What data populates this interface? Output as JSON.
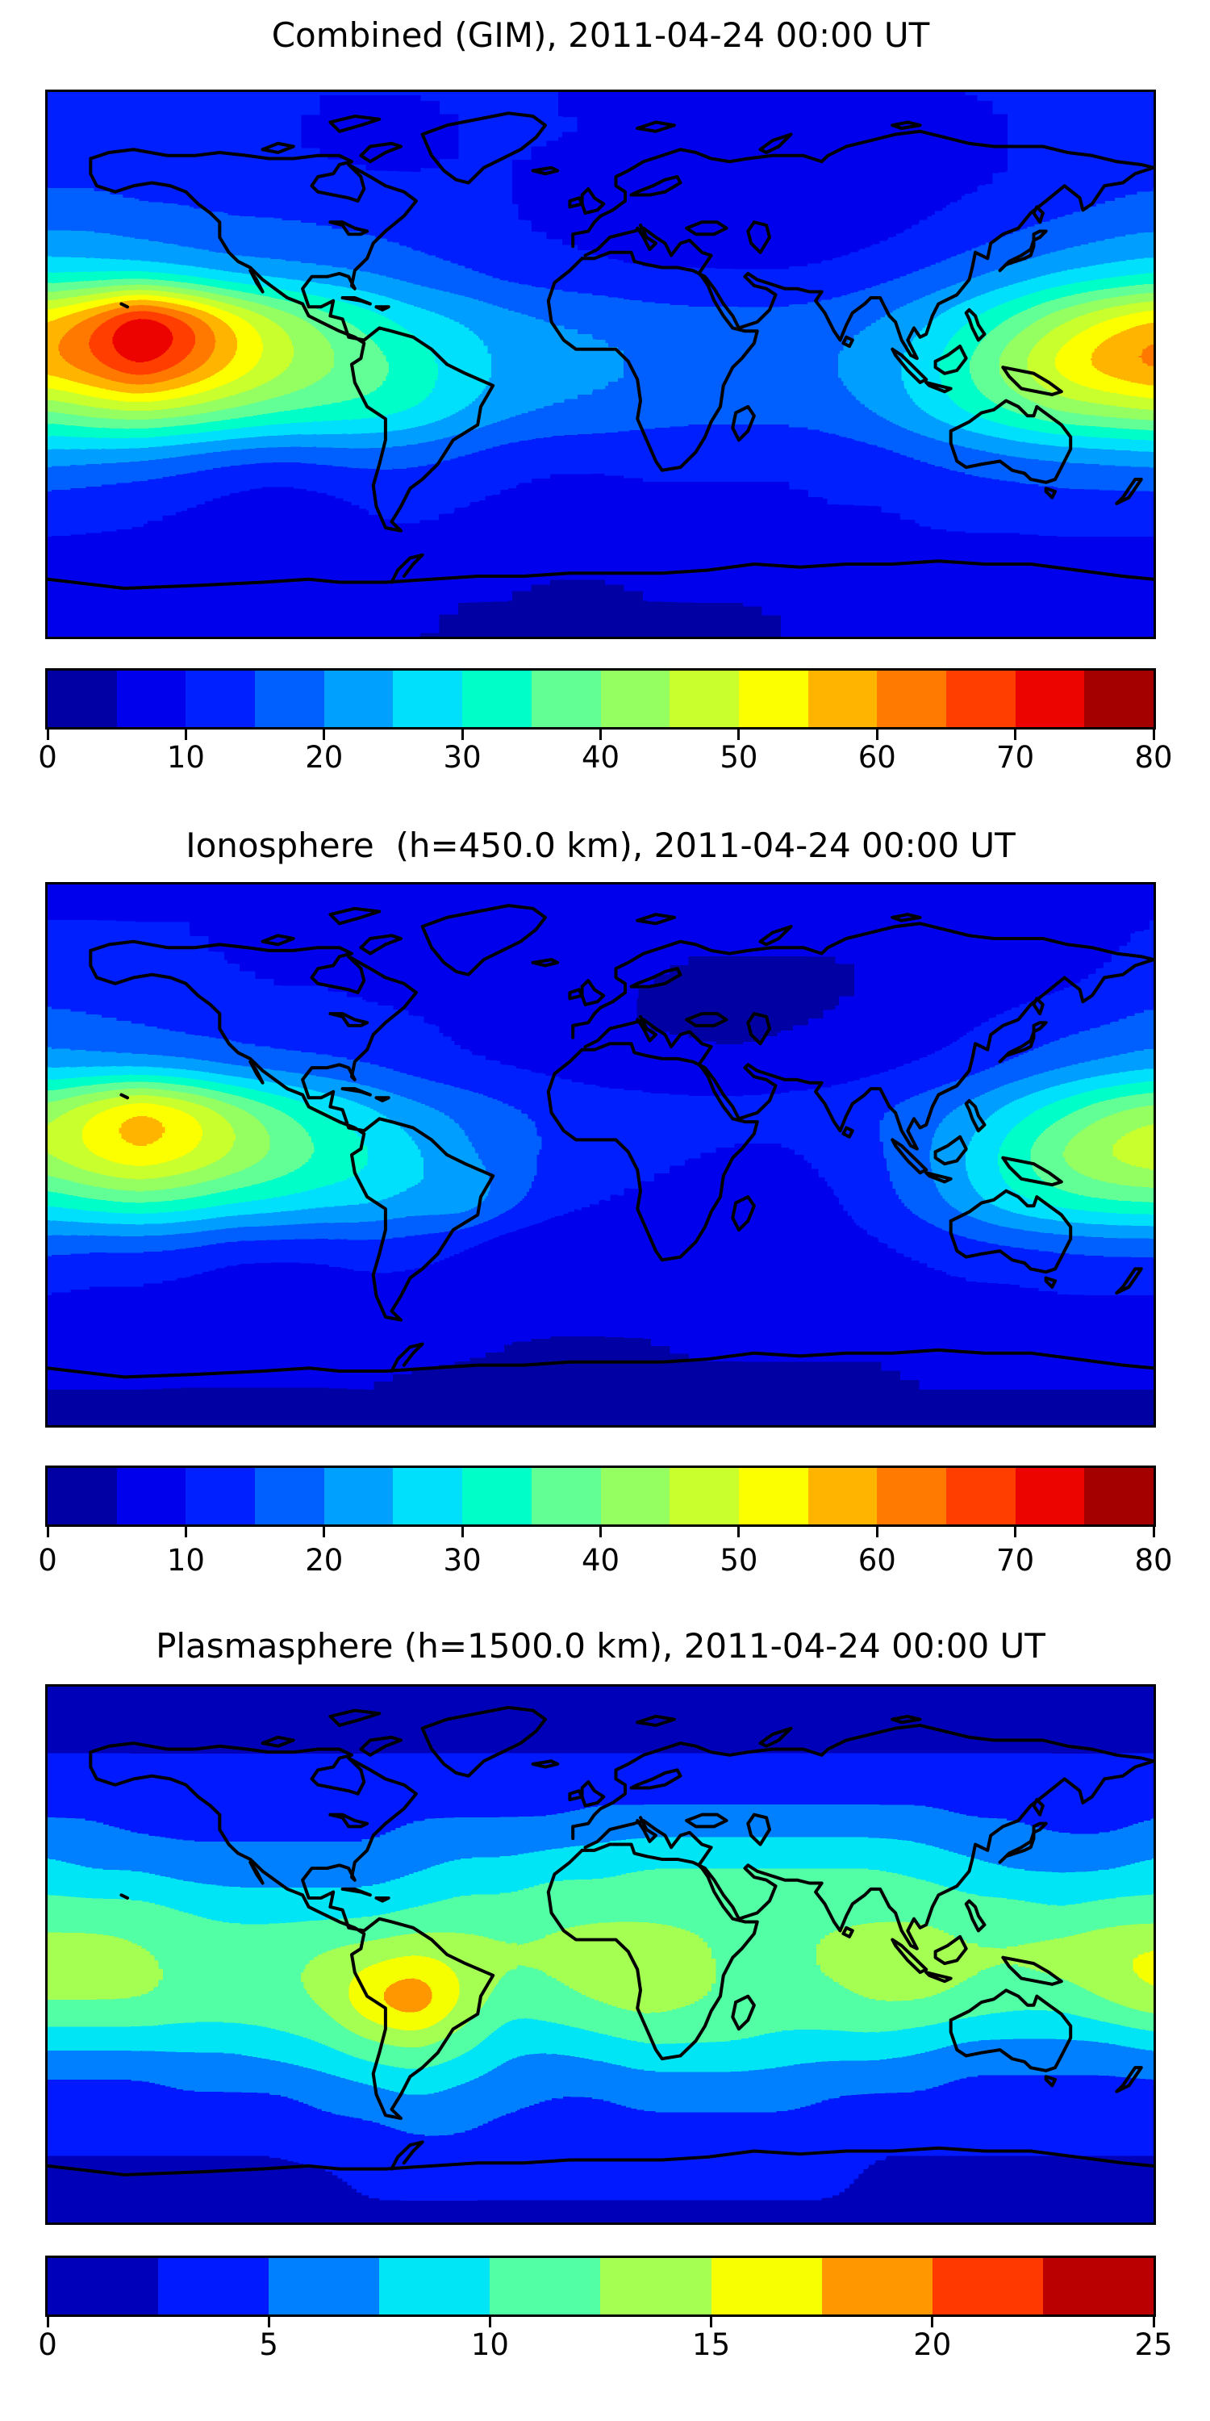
{
  "figure": {
    "background": "#ffffff",
    "text_color": "#000000",
    "border_color": "#000000"
  },
  "panels": [
    {
      "title": "Combined (GIM), 2011-04-24 00:00 UT"
    },
    {
      "title": "Ionosphere  (h=450.0 km), 2011-04-24 00:00 UT"
    },
    {
      "title": "Plasmasphere (h=1500.0 km), 2011-04-24 00:00 UT"
    }
  ],
  "chart_data": [
    {
      "type": "heatmap",
      "title": "Combined (GIM), 2011-04-24 00:00 UT",
      "colormap": "jet",
      "projection": "equirectangular world map with black coastlines",
      "vmin": 0,
      "vmax": 80,
      "level_step": 5,
      "colorbar_ticks": [
        0,
        10,
        20,
        30,
        40,
        50,
        60,
        70,
        80
      ],
      "colorbar_colors": [
        "#0000a4",
        "#0000ec",
        "#0020ff",
        "#0060ff",
        "#00a0ff",
        "#00dffc",
        "#00ffc8",
        "#62ff95",
        "#95ff62",
        "#c9ff2d",
        "#fcff00",
        "#ffb500",
        "#ff7a00",
        "#ff3e00",
        "#ec0400",
        "#a40000"
      ],
      "lat": [
        90,
        75,
        60,
        45,
        30,
        15,
        0,
        -15,
        -30,
        -45,
        -60,
        -75,
        -90
      ],
      "lon": [
        -180,
        -165,
        -150,
        -135,
        -120,
        -105,
        -90,
        -75,
        -60,
        -45,
        -30,
        -15,
        0,
        15,
        30,
        45,
        60,
        75,
        90,
        105,
        120,
        135,
        150,
        165,
        180
      ],
      "values": [
        [
          11,
          11,
          11,
          11,
          11,
          11,
          10,
          10,
          10,
          10,
          10,
          10,
          9,
          9,
          9,
          9,
          9,
          9,
          9,
          9,
          10,
          10,
          10,
          11,
          11
        ],
        [
          12,
          12,
          12,
          12,
          11,
          10,
          9,
          9,
          9,
          10,
          10,
          10,
          10,
          9,
          8,
          8,
          7,
          7,
          7,
          8,
          9,
          10,
          11,
          11,
          12
        ],
        [
          14,
          14,
          13,
          13,
          12,
          11,
          11,
          10,
          10,
          10,
          10,
          9,
          8,
          7,
          6,
          6,
          6,
          6,
          7,
          8,
          9,
          10,
          11,
          13,
          14
        ],
        [
          19,
          19,
          18,
          17,
          16,
          16,
          15,
          14,
          13,
          12,
          10,
          9,
          8,
          7,
          7,
          6,
          6,
          7,
          8,
          10,
          12,
          14,
          16,
          18,
          19
        ],
        [
          28,
          27,
          26,
          24,
          22,
          21,
          20,
          19,
          17,
          15,
          13,
          12,
          11,
          10,
          10,
          10,
          10,
          11,
          13,
          15,
          18,
          21,
          24,
          26,
          28
        ],
        [
          56,
          66,
          80,
          70,
          56,
          46,
          39,
          33,
          28,
          25,
          22,
          20,
          19,
          18,
          17,
          17,
          17,
          18,
          20,
          24,
          30,
          37,
          45,
          52,
          57
        ],
        [
          60,
          66,
          74,
          66,
          56,
          48,
          42,
          38,
          33,
          28,
          24,
          22,
          21,
          20,
          19,
          18,
          18,
          20,
          23,
          28,
          36,
          45,
          54,
          60,
          64
        ],
        [
          40,
          44,
          46,
          44,
          40,
          37,
          35,
          34,
          31,
          26,
          22,
          20,
          19,
          18,
          17,
          17,
          17,
          18,
          21,
          26,
          32,
          37,
          42,
          44,
          46
        ],
        [
          22,
          21,
          20,
          18,
          16,
          15,
          16,
          17,
          16,
          14,
          12,
          11,
          11,
          11,
          11,
          11,
          11,
          12,
          13,
          15,
          17,
          19,
          20,
          21,
          22
        ],
        [
          13,
          12,
          11,
          10,
          8,
          7,
          8,
          10,
          11,
          10,
          9,
          8,
          8,
          9,
          9,
          9,
          9,
          10,
          10,
          11,
          12,
          12,
          13,
          13,
          13
        ],
        [
          9,
          9,
          9,
          8,
          8,
          8,
          8,
          9,
          9,
          8,
          7,
          7,
          7,
          7,
          8,
          8,
          8,
          8,
          8,
          9,
          9,
          9,
          9,
          9,
          9
        ],
        [
          6,
          6,
          6,
          6,
          6,
          6,
          6,
          6,
          6,
          5,
          5,
          4,
          4,
          5,
          5,
          5,
          5,
          5,
          6,
          6,
          6,
          6,
          6,
          6,
          6
        ],
        [
          5,
          5,
          5,
          5,
          5,
          5,
          5,
          5,
          5,
          4,
          4,
          3,
          3,
          4,
          4,
          4,
          5,
          5,
          5,
          5,
          5,
          5,
          5,
          5,
          5
        ]
      ]
    },
    {
      "type": "heatmap",
      "title": "Ionosphere  (h=450.0 km), 2011-04-24 00:00 UT",
      "colormap": "jet",
      "projection": "equirectangular world map with black coastlines",
      "vmin": 0,
      "vmax": 80,
      "level_step": 5,
      "colorbar_ticks": [
        0,
        10,
        20,
        30,
        40,
        50,
        60,
        70,
        80
      ],
      "colorbar_colors": [
        "#0000a4",
        "#0000ec",
        "#0020ff",
        "#0060ff",
        "#00a0ff",
        "#00dffc",
        "#00ffc8",
        "#62ff95",
        "#95ff62",
        "#c9ff2d",
        "#fcff00",
        "#ffb500",
        "#ff7a00",
        "#ff3e00",
        "#ec0400",
        "#a40000"
      ],
      "lat": [
        90,
        75,
        60,
        45,
        30,
        15,
        0,
        -15,
        -30,
        -45,
        -60,
        -75,
        -90
      ],
      "lon": [
        -180,
        -165,
        -150,
        -135,
        -120,
        -105,
        -90,
        -75,
        -60,
        -45,
        -30,
        -15,
        0,
        15,
        30,
        45,
        60,
        75,
        90,
        105,
        120,
        135,
        150,
        165,
        180
      ],
      "values": [
        [
          9,
          9,
          9,
          9,
          9,
          9,
          8,
          8,
          8,
          8,
          8,
          8,
          8,
          7,
          7,
          7,
          7,
          7,
          7,
          7,
          8,
          8,
          8,
          9,
          9
        ],
        [
          10,
          10,
          10,
          10,
          9,
          9,
          8,
          8,
          8,
          8,
          8,
          8,
          8,
          7,
          6,
          6,
          6,
          6,
          6,
          6,
          7,
          8,
          9,
          9,
          10
        ],
        [
          12,
          12,
          11,
          11,
          10,
          9,
          9,
          8,
          8,
          8,
          8,
          7,
          6,
          5,
          4,
          4,
          4,
          4,
          5,
          5,
          6,
          7,
          8,
          10,
          12
        ],
        [
          16,
          15,
          14,
          13,
          13,
          12,
          12,
          11,
          10,
          9,
          8,
          7,
          6,
          4,
          4,
          3,
          4,
          5,
          6,
          7,
          9,
          11,
          13,
          14,
          16
        ],
        [
          22,
          21,
          20,
          19,
          17,
          16,
          15,
          14,
          12,
          10,
          9,
          8,
          7,
          7,
          6,
          6,
          7,
          7,
          8,
          10,
          12,
          15,
          18,
          20,
          22
        ],
        [
          44,
          52,
          60,
          54,
          45,
          37,
          31,
          26,
          22,
          19,
          16,
          14,
          13,
          12,
          12,
          12,
          12,
          13,
          15,
          18,
          22,
          28,
          34,
          40,
          44
        ],
        [
          46,
          52,
          56,
          52,
          46,
          40,
          35,
          31,
          26,
          21,
          17,
          14,
          12,
          11,
          10,
          9,
          9,
          11,
          14,
          19,
          26,
          34,
          42,
          47,
          50
        ],
        [
          32,
          35,
          37,
          35,
          32,
          30,
          28,
          27,
          24,
          26,
          18,
          12,
          10,
          9,
          8,
          8,
          8,
          9,
          13,
          18,
          24,
          30,
          34,
          36,
          37
        ],
        [
          16,
          15,
          15,
          14,
          12,
          12,
          12,
          13,
          12,
          9,
          6,
          6,
          7,
          8,
          8,
          8,
          8,
          8,
          9,
          11,
          13,
          14,
          15,
          16,
          16
        ],
        [
          10,
          9,
          9,
          8,
          7,
          6,
          7,
          8,
          8,
          8,
          7,
          6,
          6,
          7,
          7,
          7,
          7,
          7,
          8,
          8,
          9,
          9,
          10,
          10,
          10
        ],
        [
          7,
          7,
          7,
          6,
          6,
          6,
          6,
          7,
          7,
          6,
          5,
          5,
          5,
          5,
          6,
          6,
          6,
          6,
          6,
          7,
          7,
          7,
          7,
          7,
          7
        ],
        [
          5,
          5,
          5,
          5,
          5,
          5,
          5,
          5,
          4,
          4,
          4,
          3,
          3,
          3,
          4,
          4,
          4,
          4,
          4,
          5,
          5,
          5,
          5,
          5,
          5
        ],
        [
          4,
          4,
          4,
          4,
          4,
          4,
          4,
          4,
          4,
          3,
          3,
          3,
          3,
          3,
          3,
          3,
          4,
          4,
          4,
          4,
          4,
          4,
          4,
          4,
          4
        ]
      ]
    },
    {
      "type": "heatmap",
      "title": "Plasmasphere (h=1500.0 km), 2011-04-24 00:00 UT",
      "colormap": "jet",
      "projection": "equirectangular world map with black coastlines",
      "vmin": 0,
      "vmax": 25,
      "level_step": 2.5,
      "colorbar_ticks": [
        0,
        5,
        10,
        15,
        20,
        25
      ],
      "colorbar_colors": [
        "#0000ba",
        "#001aff",
        "#0080ff",
        "#00e6f7",
        "#52ffa4",
        "#a4ff52",
        "#f7ff00",
        "#ff9700",
        "#ff3900",
        "#ba0000"
      ],
      "lat": [
        90,
        75,
        60,
        45,
        30,
        15,
        0,
        -15,
        -30,
        -45,
        -60,
        -75,
        -90
      ],
      "lon": [
        -180,
        -165,
        -150,
        -135,
        -120,
        -105,
        -90,
        -75,
        -60,
        -45,
        -30,
        -15,
        0,
        15,
        30,
        45,
        60,
        75,
        90,
        105,
        120,
        135,
        150,
        165,
        180
      ],
      "values": [
        [
          2,
          2,
          2,
          2,
          2,
          2,
          2,
          2,
          2,
          2,
          2,
          2,
          2,
          2,
          2,
          2,
          2,
          2,
          2,
          2,
          2,
          2,
          2,
          2,
          2
        ],
        [
          2,
          2,
          2,
          2,
          2,
          2,
          2,
          2,
          2,
          2,
          2,
          2,
          2,
          2,
          2,
          2,
          2,
          2,
          2,
          2,
          2,
          2,
          2,
          2,
          2
        ],
        [
          3,
          3,
          3,
          3,
          3,
          3,
          3,
          3,
          3,
          3,
          3,
          3,
          3,
          3,
          3,
          3,
          3,
          3,
          3,
          3,
          3,
          3,
          3,
          3,
          3
        ],
        [
          5,
          5,
          4,
          4,
          4,
          4,
          4,
          4,
          5,
          5,
          5,
          5,
          6,
          6,
          6,
          6,
          6,
          6,
          6,
          6,
          5,
          5,
          4,
          4,
          5
        ],
        [
          8,
          7,
          7,
          6,
          6,
          6,
          6,
          6,
          7,
          8,
          8,
          9,
          9,
          10,
          10,
          10,
          10,
          10,
          10,
          9,
          8,
          7,
          7,
          7,
          8
        ],
        [
          11,
          11,
          11,
          10,
          9,
          9,
          9,
          9,
          10,
          11,
          11,
          12,
          12,
          12,
          12,
          12,
          12,
          12,
          12,
          12,
          11,
          11,
          10,
          11,
          11
        ],
        [
          14,
          14,
          13,
          12,
          12,
          12,
          13,
          14,
          15,
          14,
          13,
          13,
          14,
          14,
          13,
          12,
          12,
          13,
          14,
          14,
          13,
          13,
          14,
          15,
          16
        ],
        [
          13,
          13,
          13,
          12,
          12,
          12,
          13,
          18,
          21,
          15,
          11,
          12,
          13,
          14,
          13,
          12,
          12,
          12,
          13,
          13,
          12,
          11,
          11,
          13,
          15
        ],
        [
          8,
          8,
          8,
          8,
          8,
          9,
          10,
          12,
          13,
          11,
          8,
          8,
          9,
          10,
          10,
          10,
          9,
          9,
          9,
          8,
          7,
          7,
          7,
          7,
          8
        ],
        [
          4,
          4,
          4,
          5,
          5,
          5,
          6,
          7,
          8,
          7,
          6,
          5,
          5,
          6,
          6,
          6,
          6,
          5,
          5,
          5,
          4,
          4,
          4,
          4,
          4
        ],
        [
          3,
          3,
          3,
          3,
          3,
          3,
          4,
          4,
          5,
          5,
          4,
          4,
          4,
          4,
          4,
          4,
          4,
          4,
          3,
          3,
          3,
          3,
          3,
          3,
          3
        ],
        [
          2,
          2,
          2,
          2,
          2,
          2,
          2,
          3,
          3,
          3,
          3,
          3,
          3,
          3,
          3,
          3,
          3,
          3,
          2,
          2,
          2,
          2,
          2,
          2,
          2
        ],
        [
          2,
          2,
          2,
          2,
          2,
          2,
          2,
          2,
          2,
          2,
          2,
          2,
          2,
          2,
          2,
          2,
          2,
          2,
          2,
          2,
          2,
          2,
          2,
          2,
          2
        ]
      ]
    }
  ]
}
